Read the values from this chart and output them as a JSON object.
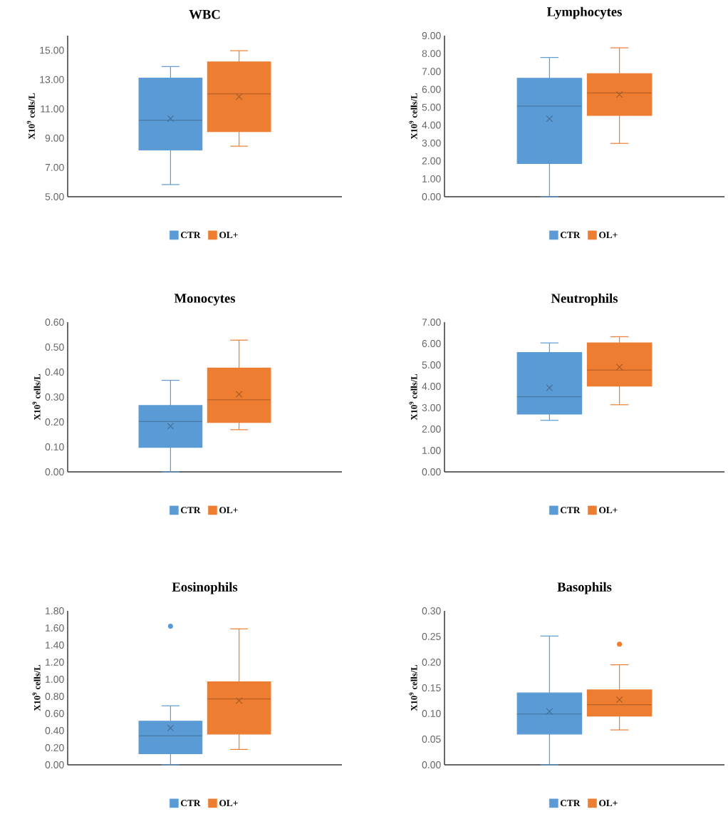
{
  "chart_data": [
    {
      "type": "box",
      "title": "WBC",
      "ylabel": "X10$^{9}$ cells/L",
      "categories": [
        null
      ],
      "legend": "bottom",
      "ylim": [
        5,
        16
      ],
      "yticks": [
        {
          "value": 5,
          "label": "5.00"
        },
        {
          "value": 7,
          "label": "7.00"
        },
        {
          "value": 9,
          "label": "9.00"
        },
        {
          "value": 11,
          "label": "11.00"
        },
        {
          "value": 13,
          "label": "13.00"
        },
        {
          "value": 15,
          "label": "15.00"
        }
      ],
      "series": [
        {
          "name": "CTR",
          "color": "#5b9bd5",
          "boxes": [
            {
              "low": 5.83,
              "q1": 8.19,
              "median": 10.22,
              "q3": 13.1,
              "high": 13.89,
              "mean": 10.33
            }
          ]
        },
        {
          "name": "OL+",
          "color": "#ed7d31",
          "boxes": [
            {
              "low": 8.45,
              "q1": 9.44,
              "median": 12.02,
              "q3": 14.2,
              "high": 14.97,
              "mean": 11.83
            }
          ]
        }
      ]
    },
    {
      "type": "box",
      "title": "Lymphocytes",
      "ylabel": "X10$^{9}$ cells/L",
      "categories": [
        null
      ],
      "legend": "bottom",
      "ylim": [
        0,
        9
      ],
      "yticks": [
        {
          "value": 0,
          "label": "0.00"
        },
        {
          "value": 1,
          "label": "1.00"
        },
        {
          "value": 2,
          "label": "2.00"
        },
        {
          "value": 3,
          "label": "3.00"
        },
        {
          "value": 4,
          "label": "4.00"
        },
        {
          "value": 5,
          "label": "5.00"
        },
        {
          "value": 6,
          "label": "6.00"
        },
        {
          "value": 7,
          "label": "7.00"
        },
        {
          "value": 8,
          "label": "8.00"
        },
        {
          "value": 9,
          "label": "9.00"
        }
      ],
      "series": [
        {
          "name": "CTR",
          "color": "#5b9bd5",
          "boxes": [
            {
              "low": 0,
              "q1": 1.86,
              "median": 5.06,
              "q3": 6.62,
              "high": 7.78,
              "mean": 4.36
            }
          ]
        },
        {
          "name": "OL+",
          "color": "#ed7d31",
          "boxes": [
            {
              "low": 2.98,
              "q1": 4.54,
              "median": 5.8,
              "q3": 6.88,
              "high": 8.32,
              "mean": 5.71
            }
          ]
        }
      ]
    },
    {
      "type": "box",
      "title": "Monocytes",
      "ylabel": "X10$^{9}$ cells/L",
      "categories": [
        null
      ],
      "legend": "bottom",
      "ylim": [
        0,
        0.6
      ],
      "yticks": [
        {
          "value": 0,
          "label": "0.00"
        },
        {
          "value": 0.1,
          "label": "0.10"
        },
        {
          "value": 0.2,
          "label": "0.20"
        },
        {
          "value": 0.3,
          "label": "0.30"
        },
        {
          "value": 0.4,
          "label": "0.40"
        },
        {
          "value": 0.5,
          "label": "0.50"
        },
        {
          "value": 0.6,
          "label": "0.60"
        }
      ],
      "series": [
        {
          "name": "CTR",
          "color": "#5b9bd5",
          "boxes": [
            {
              "low": 0,
              "q1": 0.098,
              "median": 0.202,
              "q3": 0.266,
              "high": 0.367,
              "mean": 0.183
            }
          ]
        },
        {
          "name": "OL+",
          "color": "#ed7d31",
          "boxes": [
            {
              "low": 0.169,
              "q1": 0.198,
              "median": 0.289,
              "q3": 0.416,
              "high": 0.528,
              "mean": 0.311
            }
          ]
        }
      ]
    },
    {
      "type": "box",
      "title": "Neutrophils",
      "ylabel": "X10$^{9}$ cells/L",
      "categories": [
        null
      ],
      "legend": "bottom",
      "ylim": [
        0,
        7
      ],
      "yticks": [
        {
          "value": 0,
          "label": "0.00"
        },
        {
          "value": 1,
          "label": "1.00"
        },
        {
          "value": 2,
          "label": "2.00"
        },
        {
          "value": 3,
          "label": "3.00"
        },
        {
          "value": 4,
          "label": "4.00"
        },
        {
          "value": 5,
          "label": "5.00"
        },
        {
          "value": 6,
          "label": "6.00"
        },
        {
          "value": 7,
          "label": "7.00"
        }
      ],
      "series": [
        {
          "name": "CTR",
          "color": "#5b9bd5",
          "boxes": [
            {
              "low": 2.41,
              "q1": 2.7,
              "median": 3.51,
              "q3": 5.58,
              "high": 6.03,
              "mean": 3.93
            }
          ]
        },
        {
          "name": "OL+",
          "color": "#ed7d31",
          "boxes": [
            {
              "low": 3.14,
              "q1": 4.01,
              "median": 4.76,
              "q3": 6.03,
              "high": 6.32,
              "mean": 4.9
            }
          ]
        }
      ]
    },
    {
      "type": "box",
      "title": "Eosinophils",
      "ylabel": "X10$^{9}$ cells/L",
      "categories": [
        null
      ],
      "legend": "bottom",
      "ylim": [
        0,
        1.8
      ],
      "yticks": [
        {
          "value": 0,
          "label": "0.00"
        },
        {
          "value": 0.2,
          "label": "0.20"
        },
        {
          "value": 0.4,
          "label": "0.40"
        },
        {
          "value": 0.6,
          "label": "0.60"
        },
        {
          "value": 0.8,
          "label": "0.80"
        },
        {
          "value": 1.0,
          "label": "1.00"
        },
        {
          "value": 1.2,
          "label": "1.20"
        },
        {
          "value": 1.4,
          "label": "1.40"
        },
        {
          "value": 1.6,
          "label": "1.60"
        },
        {
          "value": 1.8,
          "label": "1.80"
        }
      ],
      "series": [
        {
          "name": "CTR",
          "color": "#5b9bd5",
          "boxes": [
            {
              "low": 0,
              "q1": 0.13,
              "median": 0.34,
              "q3": 0.51,
              "high": 0.69,
              "mean": 0.43,
              "outliers": [
                1.62
              ]
            }
          ]
        },
        {
          "name": "OL+",
          "color": "#ed7d31",
          "boxes": [
            {
              "low": 0.18,
              "q1": 0.36,
              "median": 0.77,
              "q3": 0.97,
              "high": 1.59,
              "mean": 0.75
            }
          ]
        }
      ]
    },
    {
      "type": "box",
      "title": "Basophils",
      "ylabel": "X10$^{9}$ cells/L",
      "categories": [
        null
      ],
      "legend": "bottom",
      "ylim": [
        0,
        0.3
      ],
      "yticks": [
        {
          "value": 0,
          "label": "0.00"
        },
        {
          "value": 0.05,
          "label": "0.05"
        },
        {
          "value": 0.1,
          "label": "0.10"
        },
        {
          "value": 0.15,
          "label": "0.15"
        },
        {
          "value": 0.2,
          "label": "0.20"
        },
        {
          "value": 0.25,
          "label": "0.25"
        },
        {
          "value": 0.3,
          "label": "0.30"
        }
      ],
      "series": [
        {
          "name": "CTR",
          "color": "#5b9bd5",
          "boxes": [
            {
              "low": 0,
              "q1": 0.06,
              "median": 0.099,
              "q3": 0.14,
              "high": 0.251,
              "mean": 0.104
            }
          ]
        },
        {
          "name": "OL+",
          "color": "#ed7d31",
          "boxes": [
            {
              "low": 0.068,
              "q1": 0.095,
              "median": 0.117,
              "q3": 0.146,
              "high": 0.195,
              "mean": 0.127,
              "outliers": [
                0.235
              ]
            }
          ]
        }
      ]
    }
  ]
}
